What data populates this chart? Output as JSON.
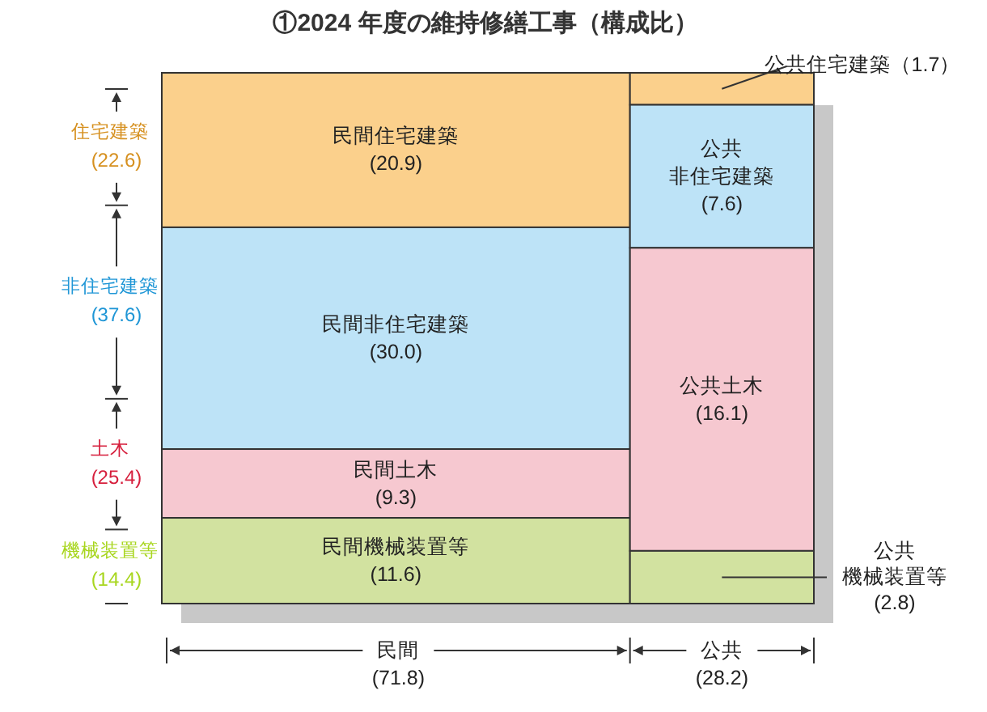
{
  "chart_data": {
    "type": "other",
    "title": "①2024 年度の維持修繕工事（構成比）",
    "categories": [
      "民間",
      "公共"
    ],
    "totals": [
      "(71.8)",
      "(28.2)"
    ],
    "annotations": [
      "(22.6)",
      "(37.6)",
      "(25.4)",
      "(14.4)"
    ],
    "series": [
      {
        "name": "住宅建築",
        "color": "#fbd08c",
        "values": [
          20.9,
          1.7
        ],
        "value_labels": [
          "民間住宅建築(20.9)",
          "公共住宅建築（1.7）"
        ]
      },
      {
        "name": "非住宅建築",
        "color": "#bde3f7",
        "values": [
          30.0,
          7.6
        ],
        "value_labels": [
          "民間非住宅建築(30.0)",
          "公共非住宅建築(7.6)"
        ]
      },
      {
        "name": "土木",
        "color": "#f6c8d0",
        "values": [
          9.3,
          16.1
        ],
        "value_labels": [
          "民間土木(9.3)",
          "公共土木(16.1)"
        ]
      },
      {
        "name": "機械装置等",
        "color": "#d2e2a0",
        "values": [
          11.6,
          2.8
        ],
        "value_labels": [
          "民間機械装置等(11.6)",
          "公共機械装置等(2.8)"
        ]
      }
    ]
  }
}
